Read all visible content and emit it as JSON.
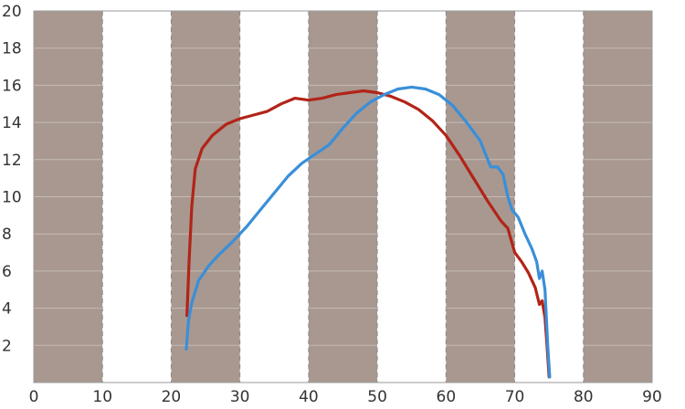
{
  "chart_data": {
    "type": "line",
    "title": "",
    "xlabel": "",
    "ylabel": "",
    "xlim": [
      0,
      90
    ],
    "ylim": [
      0,
      20
    ],
    "x_ticks": [
      0,
      10,
      20,
      30,
      40,
      50,
      60,
      70,
      80,
      90
    ],
    "y_ticks": [
      2,
      4,
      6,
      8,
      10,
      12,
      14,
      16,
      18,
      20
    ],
    "x_tick_labels": [
      "0",
      "10",
      "20",
      "30",
      "40",
      "50",
      "60",
      "70",
      "80",
      "90"
    ],
    "y_tick_labels": [
      "2",
      "4",
      "6",
      "8",
      "10",
      "12",
      "14",
      "16",
      "18",
      "20"
    ],
    "grid": "vertical dashed lines with alternating shaded bands",
    "band_color": "#a89890",
    "legend": "none",
    "series": [
      {
        "color": "#b22418",
        "x": [
          22.3,
          22.6,
          23.0,
          23.5,
          24.5,
          26,
          28,
          30,
          32,
          34,
          36,
          38,
          40,
          42,
          44,
          46,
          48,
          50,
          52,
          54,
          56,
          58,
          60,
          62,
          64,
          66,
          68,
          69,
          70,
          71,
          72,
          73,
          73.6,
          74,
          74.4,
          74.7,
          75.0
        ],
        "y": [
          3.6,
          6.5,
          9.5,
          11.5,
          12.6,
          13.3,
          13.9,
          14.2,
          14.4,
          14.6,
          15.0,
          15.3,
          15.2,
          15.3,
          15.5,
          15.6,
          15.7,
          15.6,
          15.4,
          15.1,
          14.7,
          14.1,
          13.3,
          12.2,
          11.0,
          9.8,
          8.7,
          8.3,
          7.0,
          6.5,
          5.9,
          5.1,
          4.2,
          4.4,
          3.5,
          2.0,
          0.3
        ]
      },
      {
        "color": "#3a8fd8",
        "x": [
          22.2,
          22.5,
          23,
          24,
          25.5,
          27,
          29,
          31,
          33,
          35,
          37,
          39,
          41,
          43,
          45,
          47,
          49,
          51,
          53,
          55,
          57,
          59,
          61,
          63,
          65,
          66.5,
          67.5,
          68.3,
          69,
          69.6,
          70.5,
          71.5,
          72.5,
          73.2,
          73.6,
          74.0,
          74.4,
          74.8,
          75.1
        ],
        "y": [
          1.8,
          3.3,
          4.3,
          5.5,
          6.3,
          6.9,
          7.6,
          8.4,
          9.3,
          10.2,
          11.1,
          11.8,
          12.3,
          12.8,
          13.7,
          14.5,
          15.1,
          15.5,
          15.8,
          15.9,
          15.8,
          15.5,
          14.9,
          14.0,
          13.0,
          11.6,
          11.6,
          11.2,
          10.0,
          9.3,
          8.9,
          8.0,
          7.2,
          6.5,
          5.6,
          6.0,
          5.0,
          2.0,
          0.3
        ]
      }
    ]
  }
}
